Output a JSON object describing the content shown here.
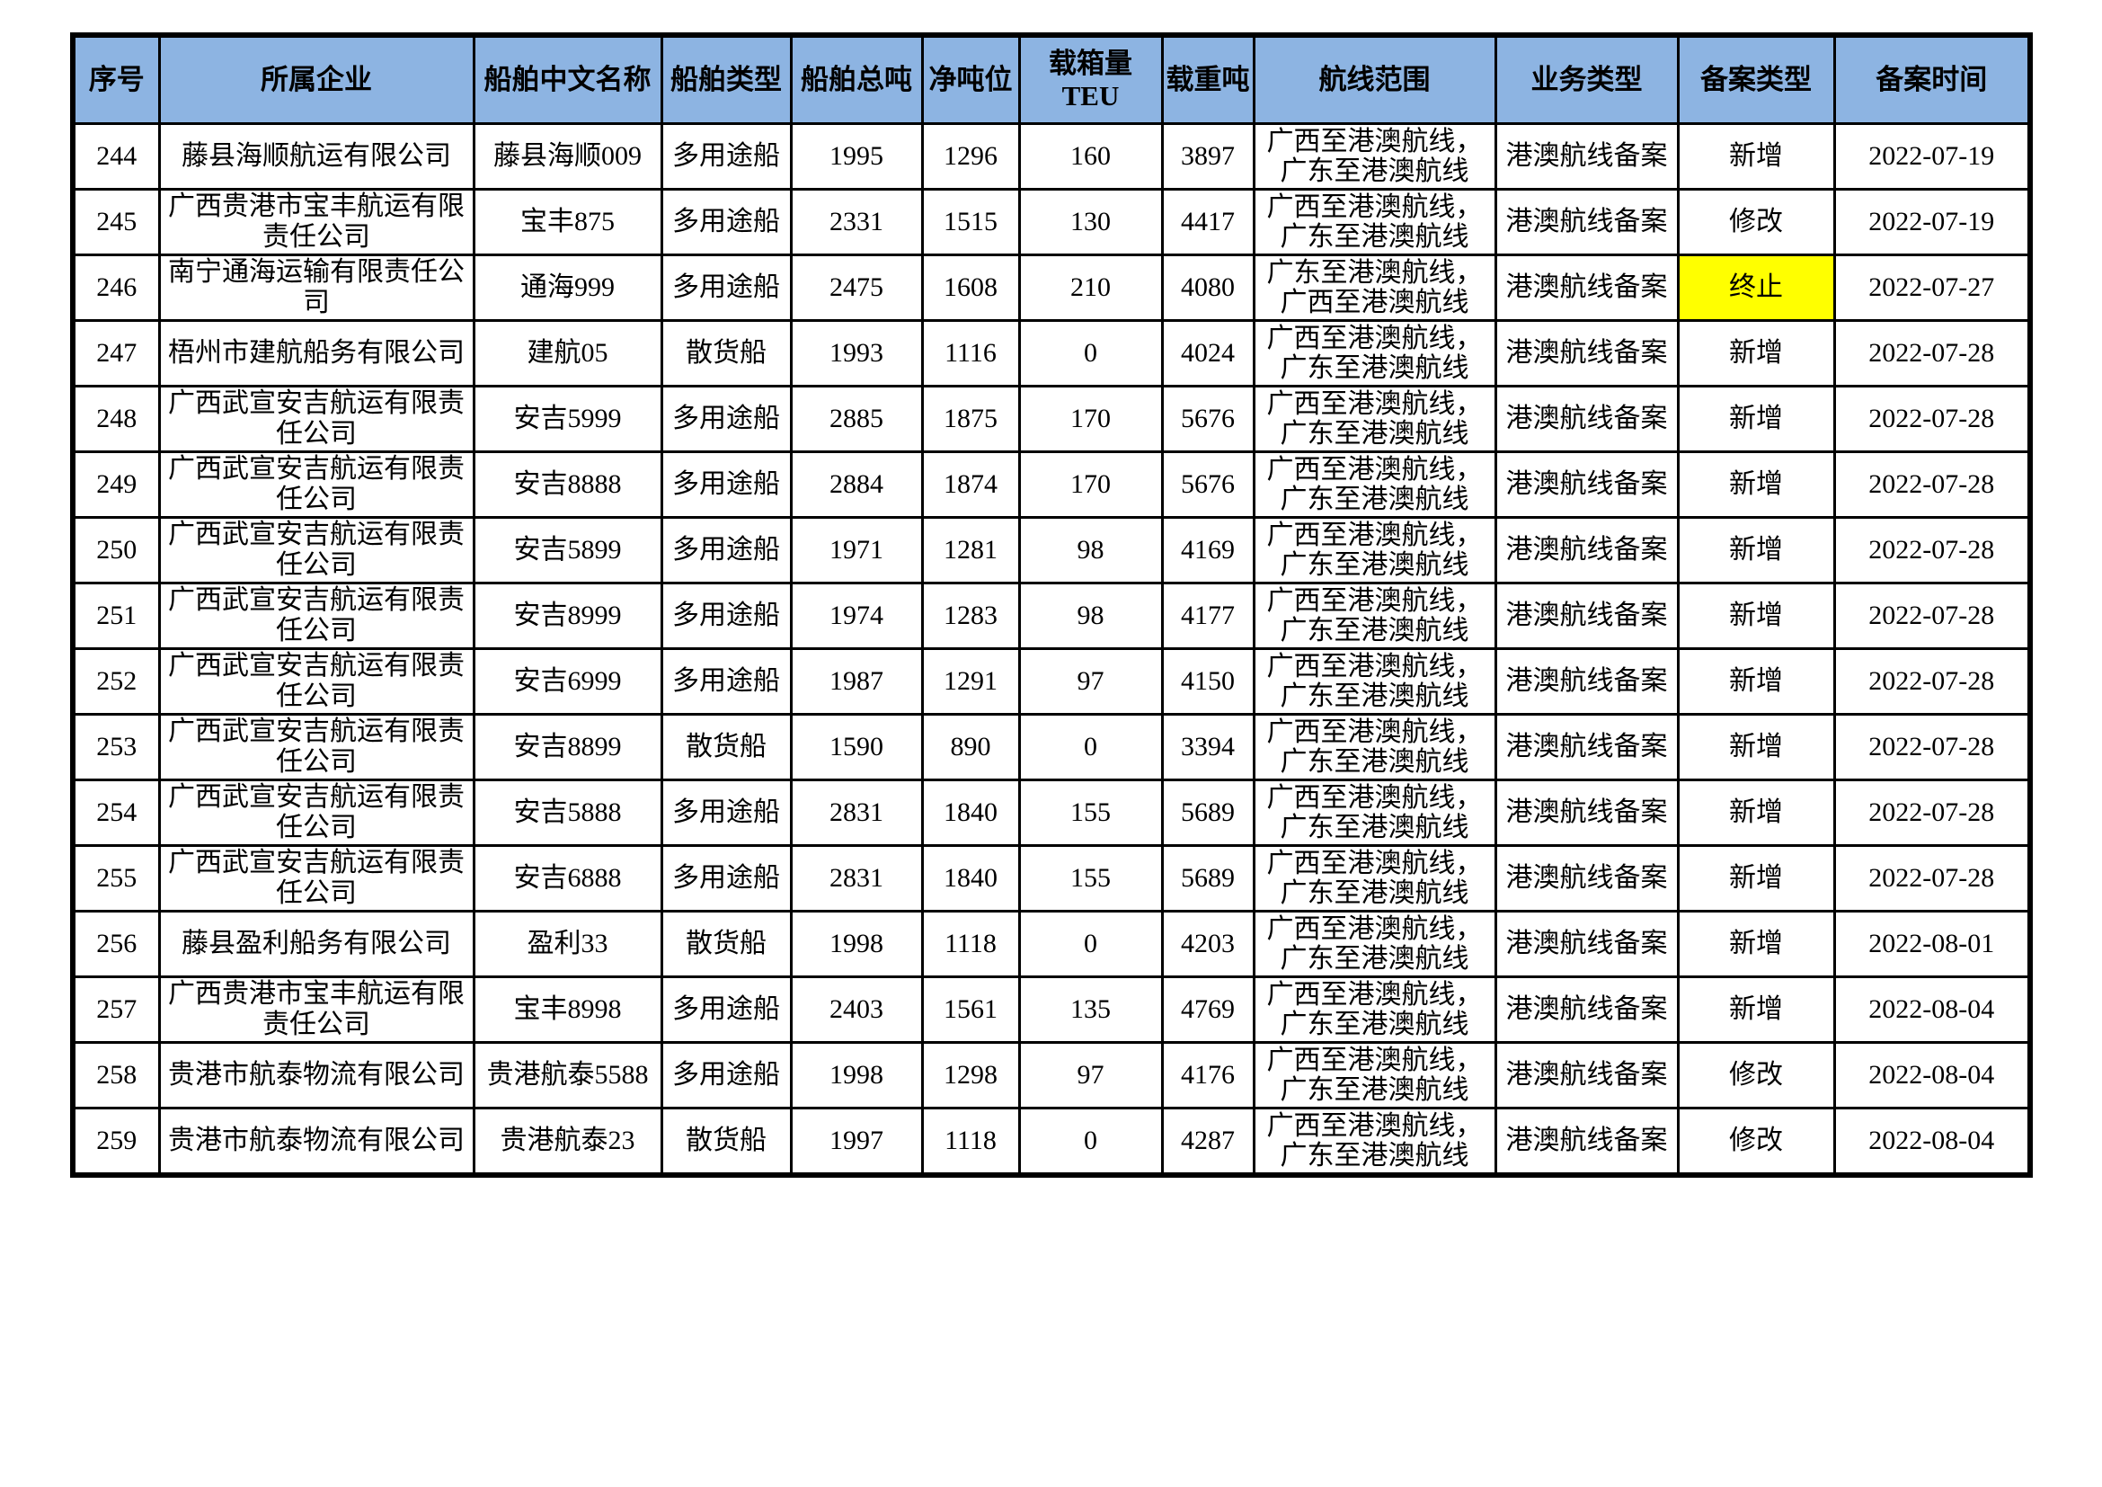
{
  "page": {
    "background": "#FFFFFF"
  },
  "table": {
    "header_bg": "#8DB4E2",
    "highlight_bg": "#FFFF00",
    "border_color": "#000000",
    "columns": [
      {
        "key": "index",
        "label": "序号"
      },
      {
        "key": "company",
        "label": "所属企业"
      },
      {
        "key": "ship_name",
        "label": "船舶中文名称"
      },
      {
        "key": "ship_type",
        "label": "船舶类型"
      },
      {
        "key": "gross_tonnage",
        "label": "船舶总吨"
      },
      {
        "key": "net_tonnage",
        "label": "净吨位"
      },
      {
        "key": "teu",
        "label": "载箱量TEU"
      },
      {
        "key": "deadweight",
        "label": "载重吨"
      },
      {
        "key": "route",
        "label": "航线范围"
      },
      {
        "key": "business_type",
        "label": "业务类型"
      },
      {
        "key": "filing_type",
        "label": "备案类型"
      },
      {
        "key": "filing_date",
        "label": "备案时间"
      }
    ],
    "rows": [
      {
        "index": "244",
        "company": "藤县海顺航运有限公司",
        "ship_name": "藤县海顺009",
        "ship_type": "多用途船",
        "gross_tonnage": "1995",
        "net_tonnage": "1296",
        "teu": "160",
        "deadweight": "3897",
        "route": "广西至港澳航线，广东至港澳航线",
        "business_type": "港澳航线备案",
        "filing_type": "新增",
        "filing_date": "2022-07-19",
        "filing_type_highlight": false
      },
      {
        "index": "245",
        "company": "广西贵港市宝丰航运有限责任公司",
        "ship_name": "宝丰875",
        "ship_type": "多用途船",
        "gross_tonnage": "2331",
        "net_tonnage": "1515",
        "teu": "130",
        "deadweight": "4417",
        "route": "广西至港澳航线，广东至港澳航线",
        "business_type": "港澳航线备案",
        "filing_type": "修改",
        "filing_date": "2022-07-19",
        "filing_type_highlight": false
      },
      {
        "index": "246",
        "company": "南宁通海运输有限责任公司",
        "ship_name": "通海999",
        "ship_type": "多用途船",
        "gross_tonnage": "2475",
        "net_tonnage": "1608",
        "teu": "210",
        "deadweight": "4080",
        "route": "广东至港澳航线，广西至港澳航线",
        "business_type": "港澳航线备案",
        "filing_type": "终止",
        "filing_date": "2022-07-27",
        "filing_type_highlight": true
      },
      {
        "index": "247",
        "company": "梧州市建航船务有限公司",
        "ship_name": "建航05",
        "ship_type": "散货船",
        "gross_tonnage": "1993",
        "net_tonnage": "1116",
        "teu": "0",
        "deadweight": "4024",
        "route": "广西至港澳航线，广东至港澳航线",
        "business_type": "港澳航线备案",
        "filing_type": "新增",
        "filing_date": "2022-07-28",
        "filing_type_highlight": false
      },
      {
        "index": "248",
        "company": "广西武宣安吉航运有限责任公司",
        "ship_name": "安吉5999",
        "ship_type": "多用途船",
        "gross_tonnage": "2885",
        "net_tonnage": "1875",
        "teu": "170",
        "deadweight": "5676",
        "route": "广西至港澳航线，广东至港澳航线",
        "business_type": "港澳航线备案",
        "filing_type": "新增",
        "filing_date": "2022-07-28",
        "filing_type_highlight": false
      },
      {
        "index": "249",
        "company": "广西武宣安吉航运有限责任公司",
        "ship_name": "安吉8888",
        "ship_type": "多用途船",
        "gross_tonnage": "2884",
        "net_tonnage": "1874",
        "teu": "170",
        "deadweight": "5676",
        "route": "广西至港澳航线，广东至港澳航线",
        "business_type": "港澳航线备案",
        "filing_type": "新增",
        "filing_date": "2022-07-28",
        "filing_type_highlight": false
      },
      {
        "index": "250",
        "company": "广西武宣安吉航运有限责任公司",
        "ship_name": "安吉5899",
        "ship_type": "多用途船",
        "gross_tonnage": "1971",
        "net_tonnage": "1281",
        "teu": "98",
        "deadweight": "4169",
        "route": "广西至港澳航线，广东至港澳航线",
        "business_type": "港澳航线备案",
        "filing_type": "新增",
        "filing_date": "2022-07-28",
        "filing_type_highlight": false
      },
      {
        "index": "251",
        "company": "广西武宣安吉航运有限责任公司",
        "ship_name": "安吉8999",
        "ship_type": "多用途船",
        "gross_tonnage": "1974",
        "net_tonnage": "1283",
        "teu": "98",
        "deadweight": "4177",
        "route": "广西至港澳航线，广东至港澳航线",
        "business_type": "港澳航线备案",
        "filing_type": "新增",
        "filing_date": "2022-07-28",
        "filing_type_highlight": false
      },
      {
        "index": "252",
        "company": "广西武宣安吉航运有限责任公司",
        "ship_name": "安吉6999",
        "ship_type": "多用途船",
        "gross_tonnage": "1987",
        "net_tonnage": "1291",
        "teu": "97",
        "deadweight": "4150",
        "route": "广西至港澳航线，广东至港澳航线",
        "business_type": "港澳航线备案",
        "filing_type": "新增",
        "filing_date": "2022-07-28",
        "filing_type_highlight": false
      },
      {
        "index": "253",
        "company": "广西武宣安吉航运有限责任公司",
        "ship_name": "安吉8899",
        "ship_type": "散货船",
        "gross_tonnage": "1590",
        "net_tonnage": "890",
        "teu": "0",
        "deadweight": "3394",
        "route": "广西至港澳航线，广东至港澳航线",
        "business_type": "港澳航线备案",
        "filing_type": "新增",
        "filing_date": "2022-07-28",
        "filing_type_highlight": false
      },
      {
        "index": "254",
        "company": "广西武宣安吉航运有限责任公司",
        "ship_name": "安吉5888",
        "ship_type": "多用途船",
        "gross_tonnage": "2831",
        "net_tonnage": "1840",
        "teu": "155",
        "deadweight": "5689",
        "route": "广西至港澳航线，广东至港澳航线",
        "business_type": "港澳航线备案",
        "filing_type": "新增",
        "filing_date": "2022-07-28",
        "filing_type_highlight": false
      },
      {
        "index": "255",
        "company": "广西武宣安吉航运有限责任公司",
        "ship_name": "安吉6888",
        "ship_type": "多用途船",
        "gross_tonnage": "2831",
        "net_tonnage": "1840",
        "teu": "155",
        "deadweight": "5689",
        "route": "广西至港澳航线，广东至港澳航线",
        "business_type": "港澳航线备案",
        "filing_type": "新增",
        "filing_date": "2022-07-28",
        "filing_type_highlight": false
      },
      {
        "index": "256",
        "company": "藤县盈利船务有限公司",
        "ship_name": "盈利33",
        "ship_type": "散货船",
        "gross_tonnage": "1998",
        "net_tonnage": "1118",
        "teu": "0",
        "deadweight": "4203",
        "route": "广西至港澳航线，广东至港澳航线",
        "business_type": "港澳航线备案",
        "filing_type": "新增",
        "filing_date": "2022-08-01",
        "filing_type_highlight": false
      },
      {
        "index": "257",
        "company": "广西贵港市宝丰航运有限责任公司",
        "ship_name": "宝丰8998",
        "ship_type": "多用途船",
        "gross_tonnage": "2403",
        "net_tonnage": "1561",
        "teu": "135",
        "deadweight": "4769",
        "route": "广西至港澳航线，广东至港澳航线",
        "business_type": "港澳航线备案",
        "filing_type": "新增",
        "filing_date": "2022-08-04",
        "filing_type_highlight": false
      },
      {
        "index": "258",
        "company": "贵港市航泰物流有限公司",
        "ship_name": "贵港航泰5588",
        "ship_type": "多用途船",
        "gross_tonnage": "1998",
        "net_tonnage": "1298",
        "teu": "97",
        "deadweight": "4176",
        "route": "广西至港澳航线，广东至港澳航线",
        "business_type": "港澳航线备案",
        "filing_type": "修改",
        "filing_date": "2022-08-04",
        "filing_type_highlight": false
      },
      {
        "index": "259",
        "company": "贵港市航泰物流有限公司",
        "ship_name": "贵港航泰23",
        "ship_type": "散货船",
        "gross_tonnage": "1997",
        "net_tonnage": "1118",
        "teu": "0",
        "deadweight": "4287",
        "route": "广西至港澳航线，广东至港澳航线",
        "business_type": "港澳航线备案",
        "filing_type": "修改",
        "filing_date": "2022-08-04",
        "filing_type_highlight": false
      }
    ]
  }
}
